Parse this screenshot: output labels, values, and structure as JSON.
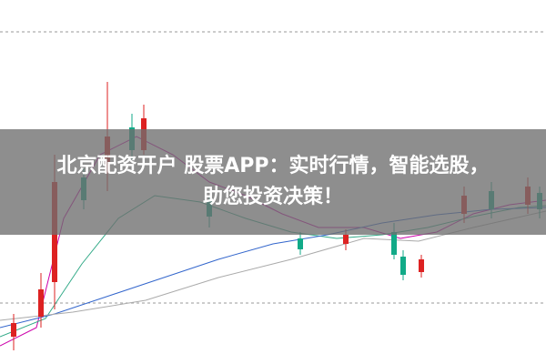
{
  "banner": {
    "lines": [
      "北京配资开户 股票APP：实时行情，智能选股，",
      "助您投资决策！"
    ]
  }
}
